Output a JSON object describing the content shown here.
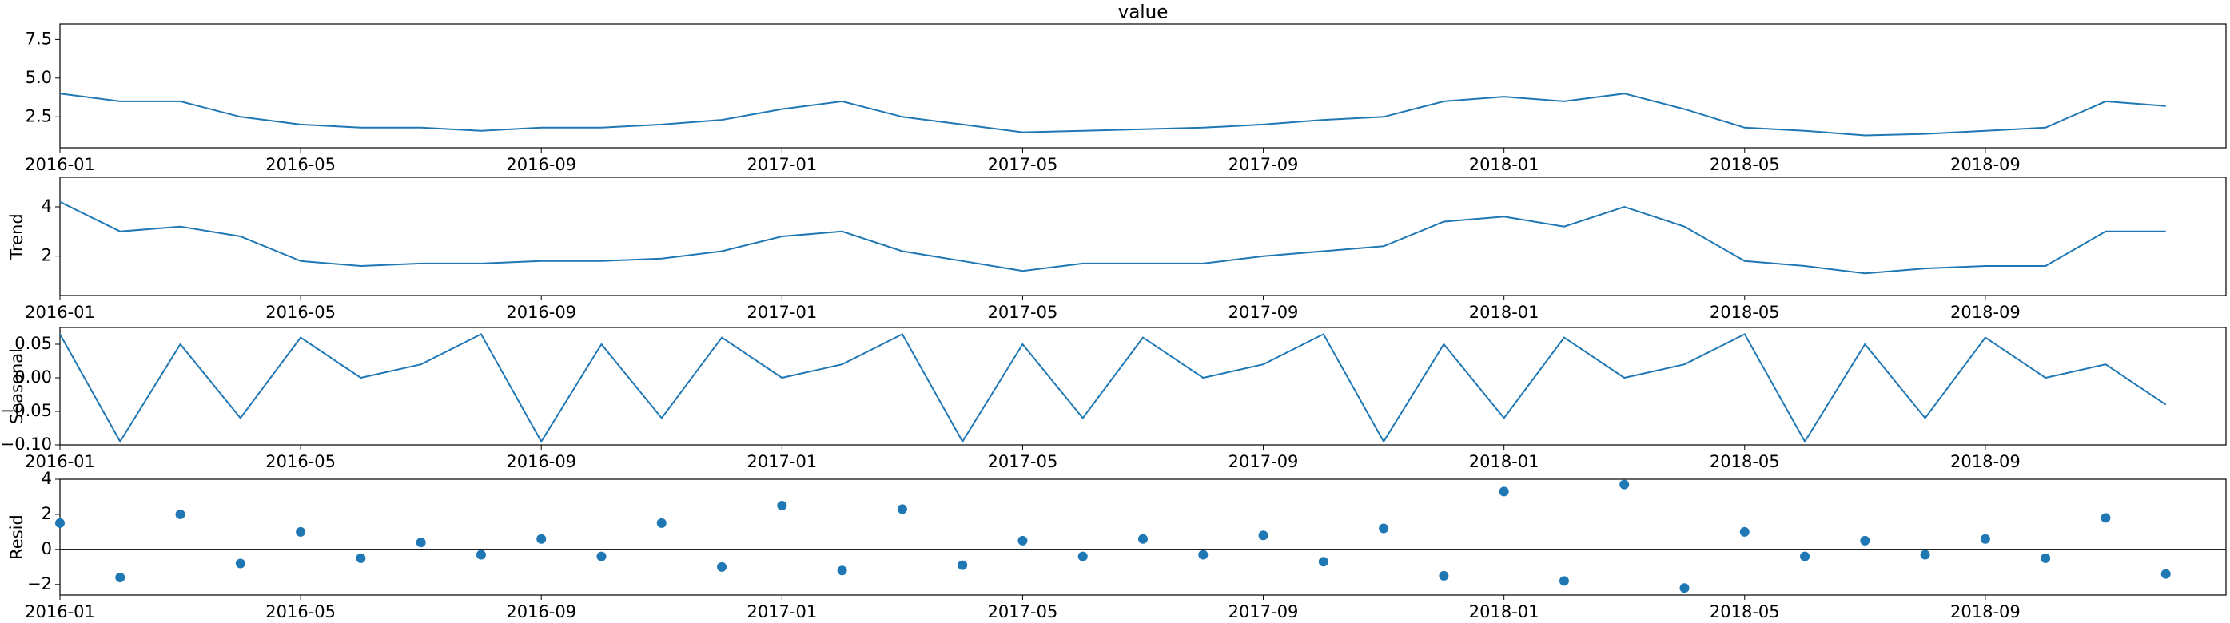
{
  "chart_data": [
    {
      "type": "line",
      "title": "value",
      "color": "#1f77b4",
      "x": [
        "2016-01",
        "2016-02",
        "2016-03",
        "2016-04",
        "2016-05",
        "2016-06",
        "2016-07",
        "2016-08",
        "2016-09",
        "2016-10",
        "2016-11",
        "2016-12",
        "2017-01",
        "2017-02",
        "2017-03",
        "2017-04",
        "2017-05",
        "2017-06",
        "2017-07",
        "2017-08",
        "2017-09",
        "2017-10",
        "2017-11",
        "2017-12",
        "2018-01",
        "2018-02",
        "2018-03",
        "2018-04",
        "2018-05",
        "2018-06",
        "2018-07",
        "2018-08",
        "2018-09",
        "2018-10",
        "2018-11",
        "2018-12"
      ],
      "values": [
        4.0,
        3.5,
        3.5,
        2.5,
        2.0,
        1.8,
        1.8,
        1.6,
        1.8,
        1.8,
        2.0,
        2.3,
        3.0,
        3.5,
        2.5,
        2.0,
        1.5,
        1.6,
        1.7,
        1.8,
        2.0,
        2.3,
        2.5,
        3.5,
        3.8,
        3.5,
        4.0,
        3.0,
        1.8,
        1.6,
        1.3,
        1.4,
        1.6,
        1.8,
        3.5,
        3.2
      ],
      "xlim": [
        "2016-01",
        "2018-12"
      ],
      "xticks": [
        "2016-01",
        "2016-05",
        "2016-09",
        "2017-01",
        "2017-05",
        "2017-09",
        "2018-01",
        "2018-05",
        "2018-09"
      ],
      "ylim": [
        0.5,
        8.5
      ],
      "yticks": [
        {
          "value": 2.5,
          "label": "2.5"
        },
        {
          "value": 5,
          "label": "5.0"
        },
        {
          "value": 7.5,
          "label": "7.5"
        }
      ]
    },
    {
      "type": "line",
      "ylabel": "Trend",
      "color": "#1f77b4",
      "x": [
        "2016-01",
        "2016-02",
        "2016-03",
        "2016-04",
        "2016-05",
        "2016-06",
        "2016-07",
        "2016-08",
        "2016-09",
        "2016-10",
        "2016-11",
        "2016-12",
        "2017-01",
        "2017-02",
        "2017-03",
        "2017-04",
        "2017-05",
        "2017-06",
        "2017-07",
        "2017-08",
        "2017-09",
        "2017-10",
        "2017-11",
        "2017-12",
        "2018-01",
        "2018-02",
        "2018-03",
        "2018-04",
        "2018-05",
        "2018-06",
        "2018-07",
        "2018-08",
        "2018-09",
        "2018-10",
        "2018-11",
        "2018-12"
      ],
      "values": [
        4.2,
        3.0,
        3.2,
        2.8,
        1.8,
        1.6,
        1.7,
        1.7,
        1.8,
        1.8,
        1.9,
        2.2,
        2.8,
        3.0,
        2.2,
        1.8,
        1.4,
        1.7,
        1.7,
        1.7,
        2.0,
        2.2,
        2.4,
        3.4,
        3.6,
        3.2,
        4.0,
        3.2,
        1.8,
        1.6,
        1.3,
        1.5,
        1.6,
        1.6,
        3.0,
        3.0
      ],
      "xlim": [
        "2016-01",
        "2018-12"
      ],
      "xticks": [
        "2016-01",
        "2016-05",
        "2016-09",
        "2017-01",
        "2017-05",
        "2017-09",
        "2018-01",
        "2018-05",
        "2018-09"
      ],
      "ylim": [
        0.4,
        5.2
      ],
      "yticks": [
        2,
        4
      ]
    },
    {
      "type": "line",
      "ylabel": "Seasonal",
      "color": "#1f77b4",
      "x": [
        "2016-01",
        "2016-02",
        "2016-03",
        "2016-04",
        "2016-05",
        "2016-06",
        "2016-07",
        "2016-08",
        "2016-09",
        "2016-10",
        "2016-11",
        "2016-12",
        "2017-01",
        "2017-02",
        "2017-03",
        "2017-04",
        "2017-05",
        "2017-06",
        "2017-07",
        "2017-08",
        "2017-09",
        "2017-10",
        "2017-11",
        "2017-12",
        "2018-01",
        "2018-02",
        "2018-03",
        "2018-04",
        "2018-05",
        "2018-06",
        "2018-07",
        "2018-08",
        "2018-09",
        "2018-10",
        "2018-11",
        "2018-12"
      ],
      "values": [
        0.065,
        -0.095,
        0.05,
        -0.06,
        0.06,
        0.0,
        0.02,
        0.065,
        -0.095,
        0.05,
        -0.06,
        0.06,
        0.0,
        0.02,
        0.065,
        -0.095,
        0.05,
        -0.06,
        0.06,
        0.0,
        0.02,
        0.065,
        -0.095,
        0.05,
        -0.06,
        0.06,
        0.0,
        0.02,
        0.065,
        -0.095,
        0.05,
        -0.06,
        0.06,
        0.0,
        0.02,
        -0.04
      ],
      "xlim": [
        "2016-01",
        "2018-12"
      ],
      "xticks": [
        "2016-01",
        "2016-05",
        "2016-09",
        "2017-01",
        "2017-05",
        "2017-09",
        "2018-01",
        "2018-05",
        "2018-09"
      ],
      "ylim": [
        -0.1,
        0.075
      ],
      "yticks": [
        {
          "value": -0.1,
          "label": "−0.10"
        },
        {
          "value": -0.05,
          "label": "−0.05"
        },
        {
          "value": 0,
          "label": "0.00"
        },
        {
          "value": 0.05,
          "label": "0.05"
        }
      ]
    },
    {
      "type": "scatter",
      "ylabel": "Resid",
      "color": "#1f77b4",
      "hline": 0,
      "x": [
        "2016-01",
        "2016-02",
        "2016-03",
        "2016-04",
        "2016-05",
        "2016-06",
        "2016-07",
        "2016-08",
        "2016-09",
        "2016-10",
        "2016-11",
        "2016-12",
        "2017-01",
        "2017-02",
        "2017-03",
        "2017-04",
        "2017-05",
        "2017-06",
        "2017-07",
        "2017-08",
        "2017-09",
        "2017-10",
        "2017-11",
        "2017-12",
        "2018-01",
        "2018-02",
        "2018-03",
        "2018-04",
        "2018-05",
        "2018-06",
        "2018-07",
        "2018-08",
        "2018-09",
        "2018-10",
        "2018-11",
        "2018-12"
      ],
      "values": [
        1.5,
        -1.6,
        2.0,
        -0.8,
        1.0,
        -0.5,
        0.4,
        -0.3,
        0.6,
        -0.4,
        1.5,
        -1.0,
        2.5,
        -1.2,
        2.3,
        -0.9,
        0.5,
        -0.4,
        0.6,
        -0.3,
        0.8,
        -0.7,
        1.2,
        -1.5,
        3.3,
        -1.8,
        3.7,
        -2.2,
        1.0,
        -0.4,
        0.5,
        -0.3,
        0.6,
        -0.5,
        1.8,
        -1.4
      ],
      "xlim": [
        "2016-01",
        "2018-12"
      ],
      "xticks": [
        "2016-01",
        "2016-05",
        "2016-09",
        "2017-01",
        "2017-05",
        "2017-09",
        "2018-01",
        "2018-05",
        "2018-09"
      ],
      "ylim": [
        -2.6,
        4.0
      ],
      "yticks": [
        {
          "value": -2,
          "label": "−2"
        },
        0,
        2,
        4
      ]
    }
  ]
}
